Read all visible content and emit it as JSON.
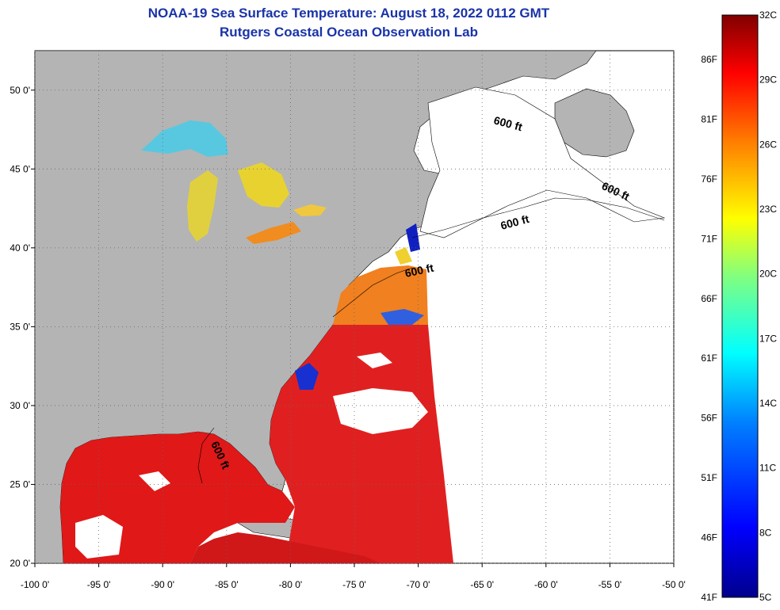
{
  "title_line1": "NOAA-19 Sea Surface Temperature:  August 18, 2022 0112 GMT",
  "title_line2": "Rutgers Coastal Ocean Observation Lab",
  "map": {
    "lon_range": [
      -100,
      -50
    ],
    "lat_range": [
      20,
      52.5
    ],
    "lon_ticks": [
      "-100 0'",
      "-95 0'",
      "-90 0'",
      "-85 0'",
      "-80 0'",
      "-75 0'",
      "-70 0'",
      "-65 0'",
      "-60 0'",
      "-55 0'",
      "-50 0'"
    ],
    "lat_ticks": [
      "20 0'",
      "25 0'",
      "30 0'",
      "35 0'",
      "40 0'",
      "45 0'",
      "50 0'"
    ],
    "isobath_label": "600 ft",
    "land_color": "#b4b4b4",
    "no_data_color": "#ffffff"
  },
  "colorbar": {
    "celsius_labels": [
      "32C",
      "29C",
      "26C",
      "23C",
      "20C",
      "17C",
      "14C",
      "11C",
      "8C",
      "5C"
    ],
    "fahrenheit_labels": [
      "86F",
      "81F",
      "76F",
      "71F",
      "66F",
      "61F",
      "56F",
      "51F",
      "46F",
      "41F"
    ],
    "celsius_range": [
      5,
      32
    ]
  }
}
